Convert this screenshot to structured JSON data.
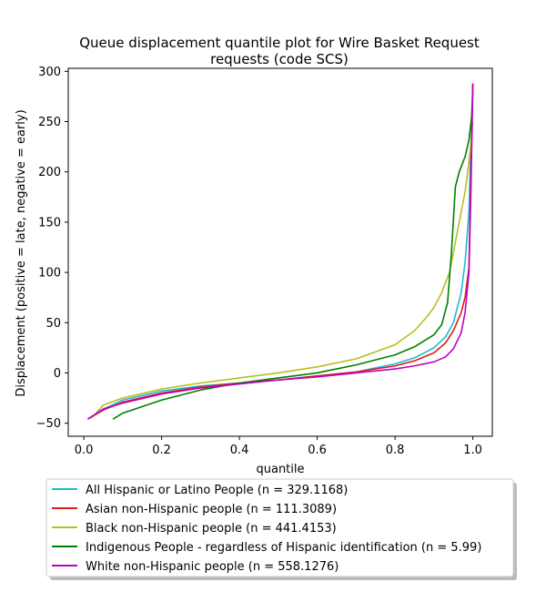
{
  "chart_data": {
    "type": "line",
    "title_lines": [
      "Queue displacement quantile plot for Wire Basket Request",
      "requests (code SCS)"
    ],
    "xlabel": "quantile",
    "ylabel": "Displacement (positive = late, negative = early)",
    "xlim": [
      -0.04,
      1.05
    ],
    "ylim": [
      -63,
      303
    ],
    "xticks": [
      0.0,
      0.2,
      0.4,
      0.6,
      0.8,
      1.0
    ],
    "xtick_labels": [
      "0.0",
      "0.2",
      "0.4",
      "0.6",
      "0.8",
      "1.0"
    ],
    "yticks": [
      -50,
      0,
      50,
      100,
      150,
      200,
      250,
      300
    ],
    "ytick_labels": [
      "−50",
      "0",
      "50",
      "100",
      "150",
      "200",
      "250",
      "300"
    ],
    "grid": false,
    "legend_position": "below",
    "series": [
      {
        "name": "All Hispanic or Latino People (n = 329.1168)",
        "color": "#17becf",
        "x": [
          0.01,
          0.05,
          0.1,
          0.2,
          0.3,
          0.4,
          0.5,
          0.6,
          0.7,
          0.8,
          0.85,
          0.9,
          0.93,
          0.95,
          0.97,
          0.98,
          0.99,
          0.995,
          1.0
        ],
        "y": [
          -46,
          -36,
          -27,
          -18,
          -13,
          -10,
          -7,
          -3,
          1,
          9,
          15,
          25,
          36,
          50,
          80,
          110,
          160,
          230,
          288
        ]
      },
      {
        "name": "Asian non-Hispanic people (n = 111.3089)",
        "color": "#e41a1c",
        "x": [
          0.01,
          0.05,
          0.1,
          0.2,
          0.3,
          0.4,
          0.5,
          0.6,
          0.7,
          0.8,
          0.85,
          0.9,
          0.93,
          0.95,
          0.97,
          0.98,
          0.99,
          0.995,
          1.0
        ],
        "y": [
          -46,
          -37,
          -29,
          -20,
          -14,
          -10,
          -7,
          -3,
          1,
          7,
          12,
          20,
          30,
          42,
          60,
          75,
          105,
          200,
          288
        ]
      },
      {
        "name": "Black non-Hispanic people (n = 441.4153)",
        "color": "#bcbd22",
        "x": [
          0.02,
          0.05,
          0.1,
          0.2,
          0.3,
          0.4,
          0.5,
          0.6,
          0.7,
          0.8,
          0.85,
          0.88,
          0.9,
          0.92,
          0.94,
          0.96,
          0.98,
          0.99,
          1.0
        ],
        "y": [
          -45,
          -32,
          -25,
          -16,
          -10,
          -5,
          0,
          6,
          14,
          28,
          42,
          55,
          65,
          80,
          100,
          140,
          180,
          210,
          250
        ]
      },
      {
        "name": "Indigenous People - regardless of Hispanic identification (n = 5.99)",
        "color": "#008000",
        "x": [
          0.075,
          0.1,
          0.2,
          0.3,
          0.4,
          0.5,
          0.6,
          0.7,
          0.8,
          0.85,
          0.9,
          0.92,
          0.935,
          0.945,
          0.955,
          0.965,
          0.98,
          0.99,
          0.997,
          1.0
        ],
        "y": [
          -46,
          -40,
          -27,
          -17,
          -10,
          -5,
          0,
          8,
          18,
          26,
          38,
          48,
          70,
          120,
          185,
          200,
          215,
          232,
          255,
          280
        ]
      },
      {
        "name": "White non-Hispanic people (n = 558.1276)",
        "color": "#bf00bf",
        "x": [
          0.01,
          0.05,
          0.1,
          0.2,
          0.3,
          0.4,
          0.5,
          0.6,
          0.7,
          0.8,
          0.85,
          0.9,
          0.93,
          0.95,
          0.97,
          0.98,
          0.99,
          0.995,
          1.0
        ],
        "y": [
          -46,
          -36,
          -30,
          -21,
          -15,
          -11,
          -7,
          -4,
          0,
          4,
          7,
          11,
          16,
          24,
          40,
          60,
          100,
          180,
          288
        ]
      }
    ]
  }
}
